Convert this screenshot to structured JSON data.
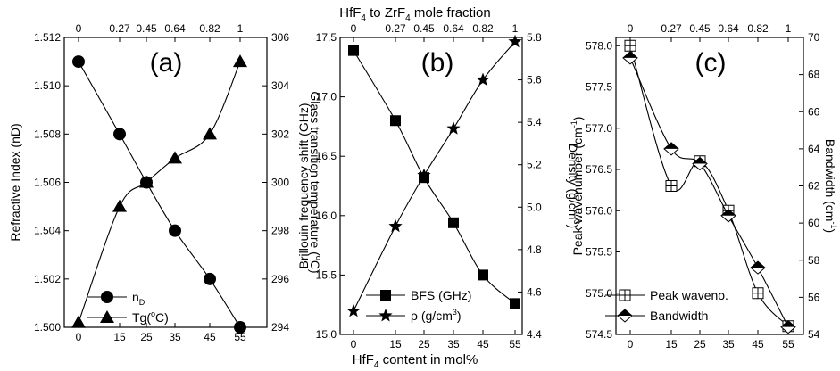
{
  "figure": {
    "top_axis_title": [
      "HfF",
      "4",
      " to ZrF",
      "4",
      " mole fraction"
    ],
    "bottom_axis_title": [
      "HfF",
      "4",
      " content in mol%"
    ]
  },
  "chart_data": [
    {
      "type": "line",
      "panel_label": "(a)",
      "x": [
        0,
        15,
        25,
        35,
        45,
        55
      ],
      "x_ticks": [
        "0",
        "15",
        "25",
        "35",
        "45",
        "55"
      ],
      "top_ticks": [
        "0",
        "0.27",
        "0.45",
        "0.64",
        "0.82",
        "1"
      ],
      "ylabel_left": "Refractive Index (nD)",
      "ylim_left": [
        1.5,
        1.512
      ],
      "yticks_left": [
        "1.500",
        "1.502",
        "1.504",
        "1.506",
        "1.508",
        "1.510",
        "1.512"
      ],
      "ylabel_right": [
        "Glass transition temperature (",
        "o",
        "C)"
      ],
      "ylim_right": [
        294,
        306
      ],
      "yticks_right": [
        "294",
        "296",
        "298",
        "300",
        "302",
        "304",
        "306"
      ],
      "series": [
        {
          "legend": [
            "n",
            "D",
            ""
          ],
          "marker": "circle",
          "axis": "left",
          "values": [
            1.511,
            1.508,
            1.506,
            1.504,
            1.502,
            1.5
          ]
        },
        {
          "legend": [
            "Tg(",
            "o",
            "C)"
          ],
          "marker": "triangle",
          "axis": "right",
          "values": [
            294.2,
            299,
            300,
            301,
            302,
            305
          ]
        }
      ]
    },
    {
      "type": "line",
      "panel_label": "(b)",
      "x": [
        0,
        15,
        25,
        35,
        45,
        55
      ],
      "x_ticks": [
        "0",
        "15",
        "25",
        "35",
        "45",
        "55"
      ],
      "top_ticks": [
        "0",
        "0.27",
        "0.45",
        "0.64",
        "0.82",
        "1"
      ],
      "ylabel_left": "Brillouin frequency shift (GHz)",
      "ylim_left": [
        15.0,
        17.5
      ],
      "yticks_left": [
        "15.0",
        "15.5",
        "16.0",
        "16.5",
        "17.0",
        "17.5"
      ],
      "ylabel_right": [
        "Density (g/cm",
        "3",
        ")"
      ],
      "ylim_right": [
        4.4,
        5.8
      ],
      "yticks_right": [
        "4.4",
        "4.6",
        "4.8",
        "5.0",
        "5.2",
        "5.4",
        "5.6",
        "5.8"
      ],
      "series": [
        {
          "legend": [
            "BFS (GHz)",
            "",
            ""
          ],
          "marker": "square",
          "axis": "left",
          "values": [
            17.39,
            16.8,
            16.32,
            15.94,
            15.5,
            15.26
          ]
        },
        {
          "legend": [
            "ρ (g/cm",
            "3",
            ")"
          ],
          "marker": "star",
          "axis": "right",
          "values": [
            4.51,
            4.91,
            5.15,
            5.37,
            5.6,
            5.78
          ]
        }
      ]
    },
    {
      "type": "line",
      "panel_label": "(c)",
      "x": [
        0,
        15,
        25,
        35,
        45,
        55
      ],
      "x_ticks": [
        "0",
        "15",
        "25",
        "35",
        "45",
        "55"
      ],
      "top_ticks": [
        "0",
        "0.27",
        "0.45",
        "0.64",
        "0.82",
        "1"
      ],
      "ylabel_left": [
        "Peak wavenumber (cm",
        "-1",
        ")"
      ],
      "ylim_left": [
        574.5,
        578.1
      ],
      "yticks_left": [
        "574.5",
        "575.0",
        "575.5",
        "576.0",
        "576.5",
        "577.0",
        "577.5",
        "578.0"
      ],
      "ylabel_right": [
        "Bandwidth (cm",
        "-1",
        ")"
      ],
      "ylim_right": [
        54,
        70
      ],
      "yticks_right": [
        "54",
        "56",
        "58",
        "60",
        "62",
        "64",
        "66",
        "68",
        "70"
      ],
      "series": [
        {
          "legend": [
            "Peak waveno.",
            "",
            ""
          ],
          "marker": "square-cross",
          "axis": "left",
          "values": [
            578.0,
            576.3,
            576.6,
            576.0,
            575.0,
            574.6
          ]
        },
        {
          "legend": [
            "Bandwidth",
            "",
            ""
          ],
          "marker": "diamond-half",
          "axis": "right",
          "values": [
            68.9,
            64.0,
            63.2,
            60.4,
            57.6,
            54.4
          ]
        }
      ]
    }
  ]
}
